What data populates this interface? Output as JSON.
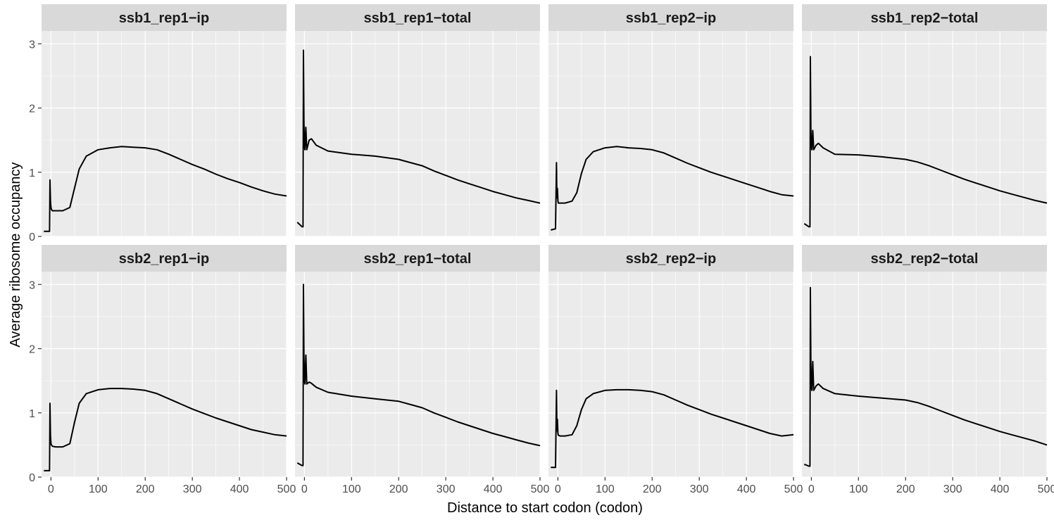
{
  "chart_data": {
    "type": "line",
    "layout": "facet-grid",
    "facet_rows": 2,
    "facet_cols": 4,
    "xlabel": "Distance to start codon (codon)",
    "ylabel": "Average ribosome occupancy",
    "xlim": [
      -20,
      500
    ],
    "ylim": [
      0,
      3.2
    ],
    "x_ticks": [
      0,
      100,
      200,
      300,
      400,
      500
    ],
    "y_ticks": [
      0,
      1,
      2,
      3
    ],
    "grid": true,
    "colors": {
      "panel_bg": "#ebebeb",
      "strip_bg": "#d9d9d9",
      "grid": "#ffffff",
      "line": "#000000"
    },
    "facets": [
      {
        "label": "ssb1_rep1−ip",
        "x": [
          -15,
          -3,
          -2,
          -1,
          0,
          1,
          3,
          10,
          25,
          40,
          50,
          60,
          75,
          100,
          125,
          150,
          175,
          200,
          225,
          250,
          275,
          300,
          325,
          350,
          375,
          400,
          425,
          450,
          475,
          500
        ],
        "y": [
          0.08,
          0.08,
          0.88,
          0.55,
          0.45,
          0.42,
          0.4,
          0.4,
          0.4,
          0.45,
          0.75,
          1.05,
          1.25,
          1.35,
          1.38,
          1.4,
          1.39,
          1.38,
          1.35,
          1.28,
          1.2,
          1.12,
          1.05,
          0.97,
          0.9,
          0.84,
          0.77,
          0.71,
          0.66,
          0.63
        ]
      },
      {
        "label": "ssb1_rep1−total",
        "x": [
          -15,
          -5,
          -3,
          -2,
          -1,
          0,
          1,
          3,
          5,
          10,
          15,
          25,
          50,
          100,
          150,
          200,
          225,
          250,
          275,
          300,
          325,
          350,
          375,
          400,
          425,
          450,
          475,
          500
        ],
        "y": [
          0.22,
          0.15,
          0.15,
          2.9,
          1.8,
          1.4,
          1.35,
          1.7,
          1.35,
          1.5,
          1.52,
          1.42,
          1.33,
          1.28,
          1.25,
          1.2,
          1.15,
          1.1,
          1.02,
          0.95,
          0.88,
          0.82,
          0.76,
          0.7,
          0.65,
          0.6,
          0.56,
          0.52
        ]
      },
      {
        "label": "ssb1_rep2−ip",
        "x": [
          -15,
          -5,
          -3,
          -2,
          -1,
          0,
          1,
          5,
          15,
          30,
          40,
          50,
          60,
          75,
          100,
          125,
          150,
          175,
          200,
          225,
          250,
          275,
          300,
          325,
          350,
          375,
          400,
          425,
          450,
          475,
          500
        ],
        "y": [
          0.1,
          0.12,
          1.15,
          0.6,
          0.75,
          0.55,
          0.52,
          0.52,
          0.52,
          0.55,
          0.68,
          0.98,
          1.2,
          1.32,
          1.38,
          1.4,
          1.38,
          1.37,
          1.35,
          1.3,
          1.22,
          1.14,
          1.07,
          1.0,
          0.94,
          0.88,
          0.82,
          0.76,
          0.7,
          0.65,
          0.63
        ]
      },
      {
        "label": "ssb1_rep2−total",
        "x": [
          -15,
          -5,
          -3,
          -2,
          -1,
          0,
          1,
          3,
          5,
          10,
          15,
          25,
          50,
          100,
          150,
          200,
          225,
          250,
          275,
          300,
          325,
          350,
          375,
          400,
          425,
          450,
          475,
          500
        ],
        "y": [
          0.2,
          0.15,
          0.15,
          2.8,
          1.7,
          1.4,
          1.35,
          1.65,
          1.35,
          1.42,
          1.45,
          1.38,
          1.28,
          1.27,
          1.24,
          1.2,
          1.16,
          1.1,
          1.03,
          0.96,
          0.89,
          0.83,
          0.77,
          0.71,
          0.66,
          0.61,
          0.56,
          0.52
        ]
      },
      {
        "label": "ssb2_rep1−ip",
        "x": [
          -15,
          -3,
          -2,
          -1,
          0,
          1,
          3,
          10,
          25,
          40,
          50,
          60,
          75,
          100,
          125,
          150,
          175,
          200,
          225,
          250,
          275,
          300,
          325,
          350,
          375,
          400,
          425,
          450,
          475,
          500
        ],
        "y": [
          0.1,
          0.1,
          1.15,
          0.65,
          0.52,
          0.5,
          0.48,
          0.47,
          0.47,
          0.52,
          0.85,
          1.15,
          1.3,
          1.36,
          1.38,
          1.38,
          1.37,
          1.35,
          1.3,
          1.22,
          1.14,
          1.06,
          0.99,
          0.92,
          0.86,
          0.8,
          0.74,
          0.7,
          0.66,
          0.64
        ]
      },
      {
        "label": "ssb2_rep1−total",
        "x": [
          -15,
          -5,
          -3,
          -2,
          -1,
          0,
          1,
          3,
          5,
          10,
          15,
          25,
          50,
          100,
          150,
          200,
          225,
          250,
          275,
          300,
          325,
          350,
          375,
          400,
          425,
          450,
          475,
          500
        ],
        "y": [
          0.22,
          0.18,
          0.18,
          3.0,
          1.9,
          1.5,
          1.45,
          1.9,
          1.45,
          1.48,
          1.46,
          1.4,
          1.32,
          1.26,
          1.22,
          1.18,
          1.13,
          1.08,
          1.0,
          0.93,
          0.86,
          0.8,
          0.74,
          0.68,
          0.63,
          0.58,
          0.53,
          0.49
        ]
      },
      {
        "label": "ssb2_rep2−ip",
        "x": [
          -15,
          -5,
          -3,
          -2,
          -1,
          0,
          1,
          5,
          15,
          30,
          40,
          50,
          60,
          75,
          100,
          125,
          150,
          175,
          200,
          225,
          250,
          275,
          300,
          325,
          350,
          375,
          400,
          425,
          450,
          475,
          500
        ],
        "y": [
          0.15,
          0.15,
          1.35,
          0.72,
          0.9,
          0.68,
          0.65,
          0.64,
          0.64,
          0.66,
          0.8,
          1.05,
          1.22,
          1.3,
          1.35,
          1.36,
          1.36,
          1.35,
          1.33,
          1.28,
          1.2,
          1.12,
          1.05,
          0.98,
          0.92,
          0.86,
          0.8,
          0.74,
          0.68,
          0.64,
          0.66
        ]
      },
      {
        "label": "ssb2_rep2−total",
        "x": [
          -15,
          -5,
          -3,
          -2,
          -1,
          0,
          1,
          3,
          5,
          10,
          15,
          25,
          50,
          100,
          150,
          200,
          225,
          250,
          275,
          300,
          325,
          350,
          375,
          400,
          425,
          450,
          475,
          500
        ],
        "y": [
          0.2,
          0.17,
          0.17,
          2.95,
          1.8,
          1.4,
          1.35,
          1.8,
          1.35,
          1.42,
          1.45,
          1.38,
          1.3,
          1.26,
          1.23,
          1.2,
          1.16,
          1.1,
          1.03,
          0.96,
          0.89,
          0.83,
          0.77,
          0.71,
          0.66,
          0.61,
          0.56,
          0.5
        ]
      }
    ]
  }
}
